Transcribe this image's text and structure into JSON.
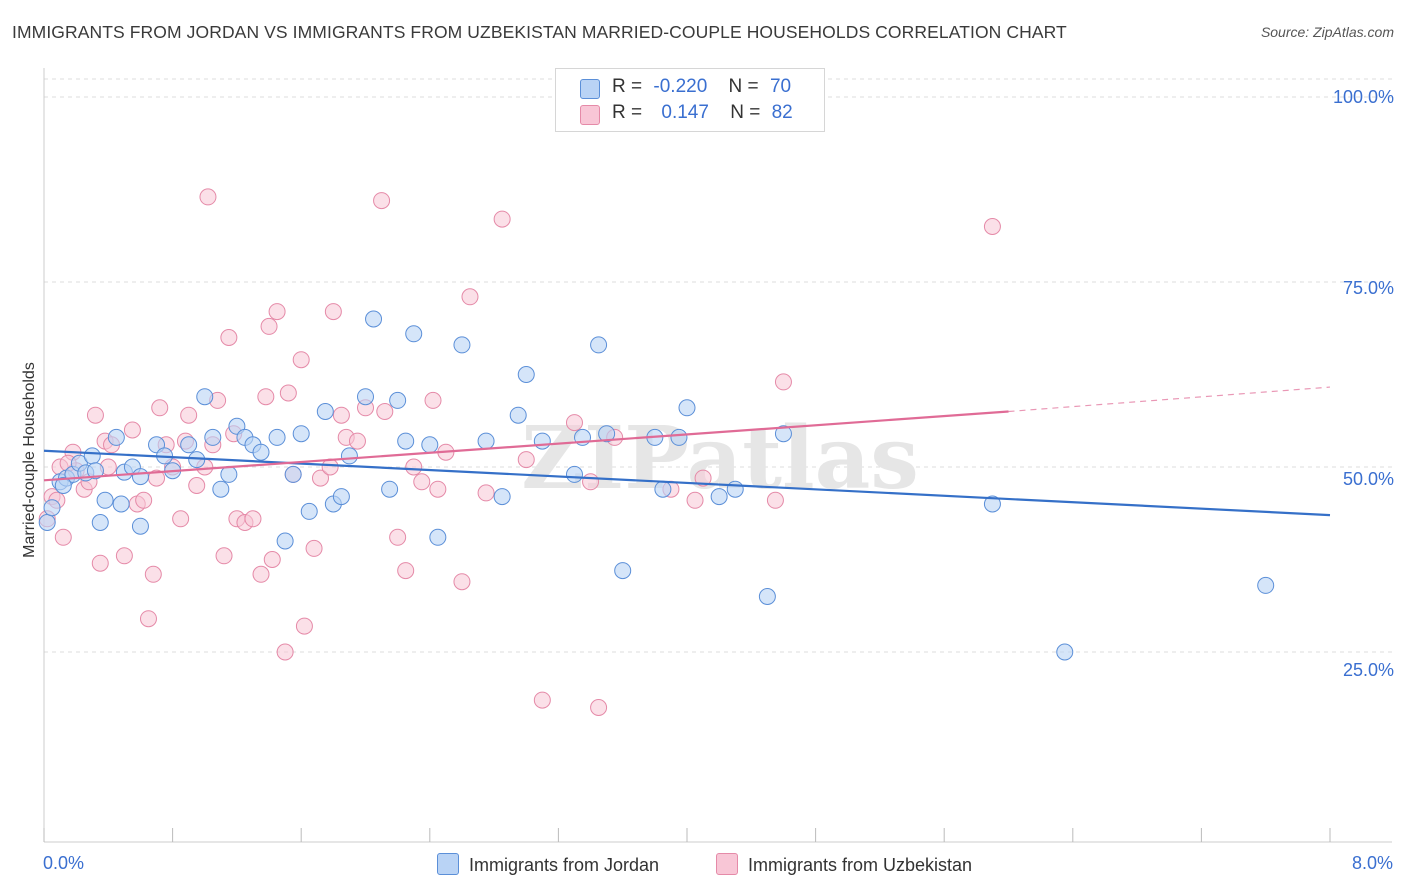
{
  "title": "IMMIGRANTS FROM JORDAN VS IMMIGRANTS FROM UZBEKISTAN MARRIED-COUPLE HOUSEHOLDS CORRELATION CHART",
  "source": "Source: ZipAtlas.com",
  "watermark": "ZIPatlas",
  "legend": {
    "rows": [
      {
        "r_label": "R =",
        "r_value": "-0.220",
        "n_label": "N =",
        "n_value": "70"
      },
      {
        "r_label": "R =",
        "r_value": "0.147",
        "n_label": "N =",
        "n_value": "82"
      }
    ]
  },
  "bottom_legend": {
    "jordan": "Immigrants from Jordan",
    "uzbekistan": "Immigrants from Uzbekistan"
  },
  "colors": {
    "jordan_fill": "#b9d3f5",
    "jordan_stroke": "#5b8fd8",
    "jordan_line": "#3570c8",
    "uzbek_fill": "#f8c6d6",
    "uzbek_stroke": "#e58aa8",
    "uzbek_line": "#e06b96",
    "axis_text": "#3a6fd0"
  },
  "chart_data": {
    "type": "scatter",
    "title": "IMMIGRANTS FROM JORDAN VS IMMIGRANTS FROM UZBEKISTAN MARRIED-COUPLE HOUSEHOLDS CORRELATION CHART",
    "xlabel": "",
    "ylabel": "Married-couple Households",
    "xlim": [
      0,
      8
    ],
    "ylim": [
      0,
      102
    ],
    "x_tick_labels": [
      "0.0%",
      "8.0%"
    ],
    "y_tick_labels": [
      "25.0%",
      "50.0%",
      "75.0%",
      "100.0%"
    ],
    "y_ticks": [
      25,
      50,
      75,
      100
    ],
    "grid": true,
    "series": [
      {
        "name": "Immigrants from Jordan",
        "R": -0.22,
        "N": 70,
        "trend": {
          "x": [
            0,
            8
          ],
          "y": [
            52.2,
            43.5
          ]
        },
        "points": [
          [
            0.02,
            42.5
          ],
          [
            0.05,
            44.5
          ],
          [
            0.1,
            48
          ],
          [
            0.14,
            48.5
          ],
          [
            0.18,
            49
          ],
          [
            0.22,
            50.5
          ],
          [
            0.26,
            49.2
          ],
          [
            0.3,
            51.5
          ],
          [
            0.32,
            49.5
          ],
          [
            0.38,
            45.5
          ],
          [
            0.45,
            54
          ],
          [
            0.48,
            45
          ],
          [
            0.5,
            49.3
          ],
          [
            0.55,
            50
          ],
          [
            0.6,
            48.7
          ],
          [
            0.7,
            53
          ],
          [
            0.75,
            51.5
          ],
          [
            0.8,
            49.5
          ],
          [
            0.9,
            53
          ],
          [
            0.95,
            51
          ],
          [
            1.0,
            59.5
          ],
          [
            1.05,
            54
          ],
          [
            1.1,
            47
          ],
          [
            1.15,
            49
          ],
          [
            1.2,
            55.5
          ],
          [
            1.25,
            54
          ],
          [
            1.3,
            53
          ],
          [
            1.35,
            52
          ],
          [
            1.45,
            54
          ],
          [
            1.5,
            40
          ],
          [
            1.55,
            49
          ],
          [
            1.6,
            54.5
          ],
          [
            1.65,
            44
          ],
          [
            1.75,
            57.5
          ],
          [
            1.8,
            45
          ],
          [
            1.85,
            46
          ],
          [
            1.9,
            51.5
          ],
          [
            2.0,
            59.5
          ],
          [
            2.05,
            70
          ],
          [
            2.15,
            47
          ],
          [
            2.2,
            59
          ],
          [
            2.25,
            53.5
          ],
          [
            2.3,
            68
          ],
          [
            2.45,
            40.5
          ],
          [
            2.4,
            53
          ],
          [
            2.6,
            66.5
          ],
          [
            2.75,
            53.5
          ],
          [
            2.85,
            46
          ],
          [
            2.95,
            57
          ],
          [
            3.0,
            62.5
          ],
          [
            3.1,
            53.5
          ],
          [
            3.3,
            49
          ],
          [
            3.35,
            54
          ],
          [
            3.45,
            66.5
          ],
          [
            3.6,
            36
          ],
          [
            3.5,
            54.5
          ],
          [
            3.8,
            54
          ],
          [
            3.85,
            47
          ],
          [
            4.0,
            58
          ],
          [
            3.95,
            54
          ],
          [
            4.2,
            46
          ],
          [
            4.5,
            32.5
          ],
          [
            4.3,
            47
          ],
          [
            4.6,
            54.5
          ],
          [
            5.9,
            45
          ],
          [
            6.35,
            25
          ],
          [
            7.6,
            34
          ],
          [
            0.12,
            47.5
          ],
          [
            0.6,
            42
          ],
          [
            0.35,
            42.5
          ]
        ]
      },
      {
        "name": "Immigrants from Uzbekistan",
        "R": 0.147,
        "N": 82,
        "trend": {
          "x": [
            0,
            6.0
          ],
          "y": [
            48.2,
            57.5
          ]
        },
        "trend_dashed": {
          "x": [
            6.0,
            8
          ],
          "y": [
            57.5,
            60.8
          ]
        },
        "points": [
          [
            0.02,
            43
          ],
          [
            0.05,
            46
          ],
          [
            0.1,
            50
          ],
          [
            0.12,
            40.5
          ],
          [
            0.18,
            52
          ],
          [
            0.2,
            49.5
          ],
          [
            0.25,
            47
          ],
          [
            0.28,
            48
          ],
          [
            0.32,
            57
          ],
          [
            0.35,
            37
          ],
          [
            0.38,
            53.5
          ],
          [
            0.42,
            53
          ],
          [
            0.5,
            38
          ],
          [
            0.55,
            55
          ],
          [
            0.58,
            45
          ],
          [
            0.62,
            45.5
          ],
          [
            0.65,
            29.5
          ],
          [
            0.68,
            35.5
          ],
          [
            0.7,
            48.5
          ],
          [
            0.72,
            58
          ],
          [
            0.76,
            53
          ],
          [
            0.8,
            50
          ],
          [
            0.85,
            43
          ],
          [
            0.88,
            53.5
          ],
          [
            0.9,
            57
          ],
          [
            0.95,
            47.5
          ],
          [
            1.0,
            50
          ],
          [
            1.02,
            86.5
          ],
          [
            1.05,
            53
          ],
          [
            1.08,
            59
          ],
          [
            1.12,
            38
          ],
          [
            1.15,
            67.5
          ],
          [
            1.18,
            54.5
          ],
          [
            1.2,
            43
          ],
          [
            1.25,
            42.5
          ],
          [
            1.3,
            43
          ],
          [
            1.35,
            35.5
          ],
          [
            1.38,
            59.5
          ],
          [
            1.4,
            69
          ],
          [
            1.42,
            37.5
          ],
          [
            1.45,
            71
          ],
          [
            1.5,
            25
          ],
          [
            1.52,
            60
          ],
          [
            1.55,
            49
          ],
          [
            1.6,
            64.5
          ],
          [
            1.62,
            28.5
          ],
          [
            1.68,
            39
          ],
          [
            1.72,
            48.5
          ],
          [
            1.78,
            50
          ],
          [
            1.8,
            71
          ],
          [
            1.85,
            57
          ],
          [
            1.88,
            54
          ],
          [
            1.95,
            53.5
          ],
          [
            2.0,
            58
          ],
          [
            2.1,
            86
          ],
          [
            2.12,
            57.5
          ],
          [
            2.2,
            40.5
          ],
          [
            2.25,
            36
          ],
          [
            2.3,
            50
          ],
          [
            2.35,
            48
          ],
          [
            2.42,
            59
          ],
          [
            2.45,
            47
          ],
          [
            2.5,
            52
          ],
          [
            2.6,
            34.5
          ],
          [
            2.65,
            73
          ],
          [
            2.75,
            46.5
          ],
          [
            2.85,
            83.5
          ],
          [
            3.0,
            51
          ],
          [
            3.1,
            18.5
          ],
          [
            3.3,
            56
          ],
          [
            3.4,
            48
          ],
          [
            3.45,
            17.5
          ],
          [
            3.55,
            54
          ],
          [
            3.9,
            47
          ],
          [
            4.05,
            45.5
          ],
          [
            4.1,
            48.5
          ],
          [
            4.6,
            61.5
          ],
          [
            4.55,
            45.5
          ],
          [
            5.9,
            82.5
          ],
          [
            0.08,
            45.5
          ],
          [
            0.15,
            50.5
          ],
          [
            0.4,
            50
          ]
        ]
      }
    ]
  }
}
